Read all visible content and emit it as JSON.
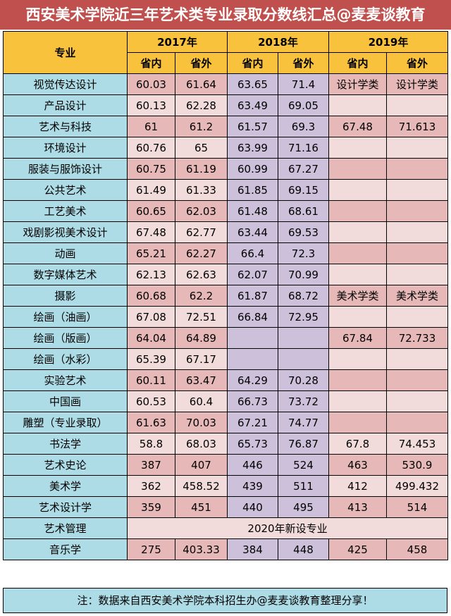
{
  "title": "西安美术学院近三年艺术类专业录取分数线汇总@麦麦谈教育",
  "header": {
    "major": "专业",
    "years": [
      "2017年",
      "2018年",
      "2019年"
    ],
    "province_in": "省内",
    "province_out": "省外"
  },
  "rows": [
    {
      "major": "视觉传达设计",
      "v": [
        "60.03",
        "61.64",
        "63.65",
        "71.4",
        "设计学类",
        "设计学类"
      ]
    },
    {
      "major": "产品设计",
      "v": [
        "60.13",
        "62.28",
        "63.49",
        "69.05",
        "",
        ""
      ]
    },
    {
      "major": "艺术与科技",
      "v": [
        "61",
        "61.2",
        "61.57",
        "69.3",
        "67.48",
        "71.613"
      ]
    },
    {
      "major": "环境设计",
      "v": [
        "60.76",
        "65",
        "63.99",
        "71.16",
        "",
        ""
      ]
    },
    {
      "major": "服装与服饰设计",
      "v": [
        "60.75",
        "61.19",
        "60.99",
        "67.27",
        "",
        ""
      ]
    },
    {
      "major": "公共艺术",
      "v": [
        "61.49",
        "61.33",
        "61.85",
        "69.15",
        "",
        ""
      ]
    },
    {
      "major": "工艺美术",
      "v": [
        "60.65",
        "62.03",
        "61.48",
        "68.61",
        "",
        ""
      ]
    },
    {
      "major": "戏剧影视美术设计",
      "v": [
        "67.48",
        "62.77",
        "63.44",
        "69.53",
        "",
        ""
      ]
    },
    {
      "major": "动画",
      "v": [
        "65.21",
        "62.27",
        "66.4",
        "72.3",
        "",
        ""
      ]
    },
    {
      "major": "数字媒体艺术",
      "v": [
        "62.13",
        "62.63",
        "62.07",
        "70.99",
        "",
        ""
      ]
    },
    {
      "major": "摄影",
      "v": [
        "60.68",
        "62.2",
        "61.87",
        "68.72",
        "美术学类",
        "美术学类"
      ]
    },
    {
      "major": "绘画（油画）",
      "v": [
        "67.08",
        "72.51",
        "66.84",
        "72.95",
        "",
        ""
      ]
    },
    {
      "major": "绘画（版画）",
      "v": [
        "64.04",
        "64.89",
        "",
        "",
        "67.84",
        "72.733"
      ]
    },
    {
      "major": "绘画（水彩）",
      "v": [
        "65.39",
        "67.17",
        "",
        "",
        "",
        ""
      ]
    },
    {
      "major": "实验艺术",
      "v": [
        "60.11",
        "63.47",
        "64.29",
        "70.28",
        "",
        ""
      ]
    },
    {
      "major": "中国画",
      "v": [
        "60.53",
        "60.4",
        "66.73",
        "73.72",
        "",
        ""
      ]
    },
    {
      "major": "雕塑（专业录取）",
      "v": [
        "61.63",
        "70.03",
        "67.21",
        "74.77",
        "",
        ""
      ]
    },
    {
      "major": "书法学",
      "v": [
        "58.8",
        "68.03",
        "65.73",
        "76.87",
        "67.8",
        "74.453"
      ]
    },
    {
      "major": "艺术史论",
      "v": [
        "387",
        "407",
        "446",
        "524",
        "463",
        "530.9"
      ]
    },
    {
      "major": "美术学",
      "v": [
        "362",
        "458.52",
        "439",
        "511",
        "412",
        "499.432"
      ]
    },
    {
      "major": "艺术设计学",
      "v": [
        "359",
        "451",
        "440",
        "495",
        "413",
        "514"
      ]
    }
  ],
  "art_management": {
    "major": "艺术管理",
    "note": "2020年新设专业"
  },
  "music": {
    "major": "音乐学",
    "v": [
      "275",
      "403.33",
      "384",
      "448",
      "425",
      "458"
    ]
  },
  "footnote": "注：数据来自西安美术学院本科招生办@麦麦谈教育整理分享！",
  "colors": {
    "title_bg": "#c0504d",
    "header_bg": "#f9c23c",
    "major_bg": "#aedce6",
    "pink_dark": "#e6b8b7",
    "pink_light": "#f2dcdb",
    "purple": "#ccc0da"
  }
}
